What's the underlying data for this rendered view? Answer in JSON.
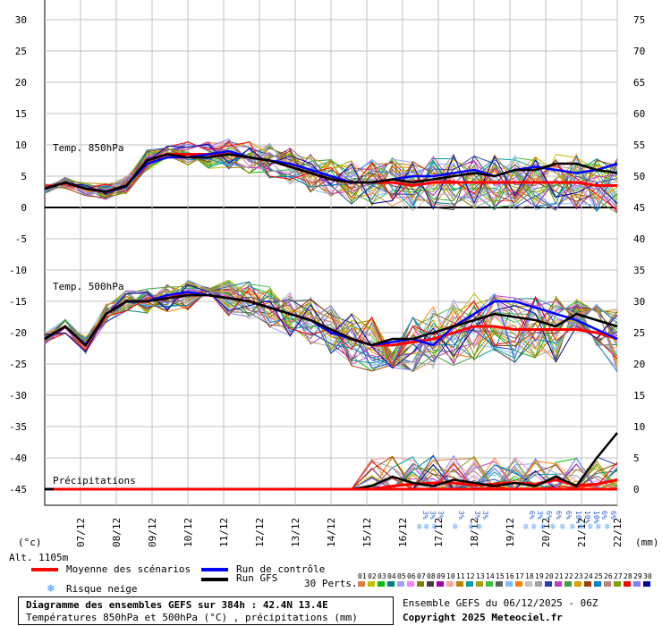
{
  "chart_data": {
    "type": "line",
    "title": "Diagramme des ensembles GEFS sur 384h : 42.4N 13.4E",
    "subtitle": "Températures 850hPa et 500hPa (°C) , précipitations (mm)",
    "left_axis_unit": "(°c)",
    "right_axis_unit": "(mm)",
    "left_ticks": [
      30,
      25,
      20,
      15,
      10,
      5,
      0,
      -5,
      -10,
      -15,
      -20,
      -25,
      -30,
      -35,
      -40,
      -45
    ],
    "right_ticks": [
      75,
      70,
      65,
      60,
      55,
      50,
      45,
      40,
      35,
      30,
      25,
      20,
      15,
      10,
      5,
      0
    ],
    "x_labels": [
      "07/12",
      "08/12",
      "09/12",
      "10/12",
      "11/12",
      "12/12",
      "13/12",
      "14/12",
      "15/12",
      "16/12",
      "17/12",
      "18/12",
      "19/12",
      "20/12",
      "21/12",
      "22/12"
    ],
    "panel_labels": {
      "t850": "Temp. 850hPa",
      "t500": "Temp. 500hPa",
      "precip": "Précipitations"
    },
    "altitude": "Alt. 1105m",
    "snow_labels": [
      "3%",
      "3%",
      "3%",
      "3%",
      "3%",
      "3%",
      "6%",
      "3%",
      "6%",
      "6%",
      "6%",
      "10%",
      "10%",
      "10%",
      "6%",
      "6%"
    ],
    "series": [
      {
        "name": "Moyenne des scénarios",
        "color": "#ff0000",
        "t850": [
          3,
          4,
          3,
          2.5,
          3.5,
          7.5,
          8.5,
          8.5,
          8.5,
          8.5,
          8,
          7.5,
          6.5,
          5.5,
          4.5,
          4,
          4,
          4,
          3.5,
          4,
          4,
          4,
          4,
          4,
          4,
          4,
          4,
          3.5,
          3.5
        ],
        "t500": [
          -21,
          -19,
          -22,
          -17,
          -15,
          -15,
          -14.5,
          -14,
          -14,
          -14.5,
          -15,
          -16,
          -17,
          -18,
          -19.5,
          -21,
          -22,
          -22,
          -21.5,
          -21,
          -20,
          -19,
          -19,
          -19.5,
          -19.5,
          -19.5,
          -19.5,
          -20,
          -21
        ],
        "precip": [
          0,
          0,
          0,
          0,
          0,
          0,
          0,
          0,
          0,
          0,
          0,
          0,
          0,
          0,
          0,
          0,
          0,
          0.5,
          0.8,
          1,
          1,
          0.6,
          0.8,
          1,
          0.8,
          1.5,
          0.6,
          0.8,
          1.5
        ]
      },
      {
        "name": "Run de contrôle",
        "color": "#0000ff",
        "t850": [
          3,
          4,
          3,
          2.5,
          3.5,
          7,
          8,
          8,
          8.5,
          9,
          8,
          7.5,
          7,
          6,
          5,
          4,
          4,
          4.5,
          5,
          5,
          5.5,
          6,
          5,
          6,
          6.5,
          6,
          5.5,
          6,
          7
        ],
        "t500": [
          -21,
          -19,
          -22,
          -17,
          -15,
          -15,
          -14,
          -13.5,
          -14,
          -14.5,
          -15,
          -16,
          -17,
          -18,
          -20,
          -21,
          -22,
          -21.5,
          -21,
          -22,
          -19,
          -17,
          -15,
          -15,
          -16,
          -17,
          -18,
          -19.5,
          -21
        ],
        "precip": [
          0,
          0,
          0,
          0,
          0,
          0,
          0,
          0,
          0,
          0,
          0,
          0,
          0,
          0,
          0,
          0,
          0,
          0,
          0,
          0,
          0,
          0,
          0,
          0,
          0,
          0,
          0,
          0,
          0
        ]
      },
      {
        "name": "Run GFS",
        "color": "#000000",
        "t850": [
          3,
          4,
          3,
          2.5,
          3.5,
          7.5,
          8.5,
          8,
          8,
          8.5,
          8,
          7.5,
          6.5,
          5.5,
          4.5,
          4,
          4,
          4.5,
          4,
          4.5,
          5,
          5.5,
          5,
          6,
          6,
          7,
          7,
          6,
          5.5
        ],
        "t500": [
          -21,
          -19,
          -22,
          -17,
          -15,
          -15,
          -14.5,
          -14,
          -14,
          -14.5,
          -15,
          -16,
          -17,
          -18,
          -19.5,
          -21,
          -22,
          -21,
          -21,
          -20,
          -19,
          -18,
          -17,
          -17.5,
          -18,
          -19,
          -17,
          -18,
          -19
        ],
        "precip": [
          0,
          0,
          0,
          0,
          0,
          0,
          0,
          0,
          0,
          0,
          0,
          0,
          0,
          0,
          0,
          0,
          0.5,
          2,
          1,
          0.5,
          1.5,
          1,
          0.5,
          1,
          0.5,
          2,
          0.5,
          5,
          9
        ]
      }
    ]
  },
  "legend": {
    "mean": "Moyenne des scénarios",
    "control": "Run de contrôle",
    "gfs": "Run GFS",
    "snow": "Risque neige",
    "perts": "30 Perts.",
    "pert_numbers": [
      "01",
      "02",
      "03",
      "04",
      "05",
      "06",
      "07",
      "08",
      "09",
      "10",
      "11",
      "12",
      "13",
      "14",
      "15",
      "16",
      "17",
      "18",
      "19",
      "20",
      "21",
      "22",
      "23",
      "24",
      "25",
      "26",
      "27",
      "28",
      "29",
      "30"
    ],
    "pert_colors": [
      "#e08040",
      "#c0c000",
      "#00c000",
      "#008080",
      "#a0a0ff",
      "#ff80ff",
      "#808000",
      "#404040",
      "#a000a0",
      "#ffa0a0",
      "#c08000",
      "#00a0a0",
      "#a0a000",
      "#40c040",
      "#606060",
      "#80c0ff",
      "#ff8000",
      "#c0c0c0",
      "#a0a0a0",
      "#2040c0",
      "#c040c0",
      "#40a040",
      "#e0a000",
      "#a04000",
      "#0080c0",
      "#c08080",
      "#80a000",
      "#ff0000",
      "#8080ff",
      "#0000a0"
    ],
    "colors": {
      "mean": "#ff0000",
      "control": "#0000ff",
      "gfs": "#000000"
    }
  },
  "footer": {
    "title": "Diagramme des ensembles GEFS sur 384h : 42.4N 13.4E",
    "subtitle": "Températures 850hPa et 500hPa (°C) , précipitations (mm)",
    "run": "Ensemble GEFS du 06/12/2025 - 06Z",
    "copyright": "Copyright 2025 Meteociel.fr"
  }
}
